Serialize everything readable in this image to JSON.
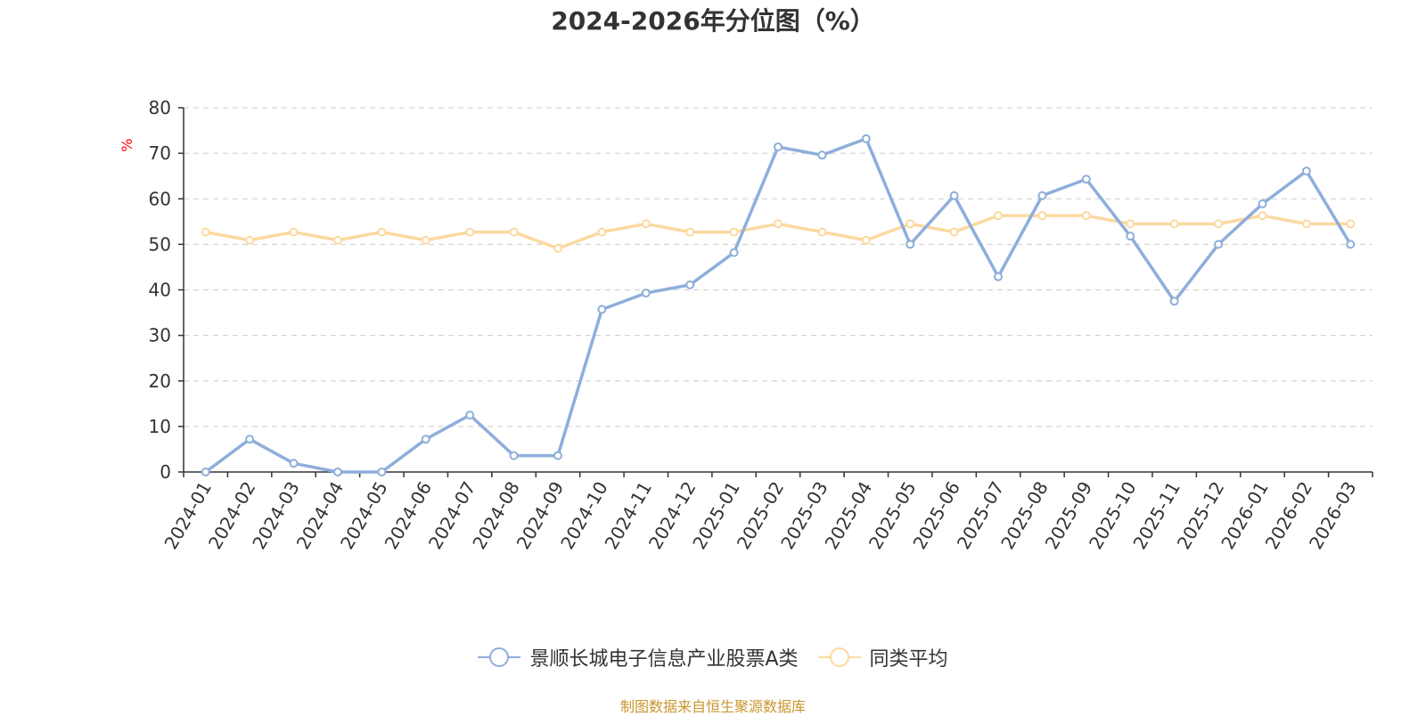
{
  "chart_data": {
    "type": "line",
    "title": "2024-2026年分位图（%）",
    "ylabel": "%",
    "ylim": [
      0,
      80
    ],
    "yticks": [
      0,
      10,
      20,
      30,
      40,
      50,
      60,
      70,
      80
    ],
    "grid": true,
    "legend_position": "bottom",
    "categories": [
      "2024-01",
      "2024-02",
      "2024-03",
      "2024-04",
      "2024-05",
      "2024-06",
      "2024-07",
      "2024-08",
      "2024-09",
      "2024-10",
      "2024-11",
      "2024-12",
      "2025-01",
      "2025-02",
      "2025-03",
      "2025-04",
      "2025-05",
      "2025-06",
      "2025-07",
      "2025-08",
      "2025-09",
      "2025-10",
      "2025-11",
      "2025-12",
      "2026-01",
      "2026-02",
      "2026-03"
    ],
    "series": [
      {
        "name": "景顺长城电子信息产业股票A类",
        "color": "#8eaedb",
        "values": [
          0,
          7.2,
          1.9,
          0,
          0,
          7.2,
          12.5,
          3.6,
          3.6,
          35.7,
          39.3,
          41.1,
          48.2,
          71.4,
          69.6,
          73.2,
          50.0,
          60.7,
          42.9,
          60.7,
          64.3,
          51.8,
          37.5,
          50.0,
          58.9,
          66.1,
          50.0
        ]
      },
      {
        "name": "同类平均",
        "color": "#fcd9a0",
        "values": [
          52.7,
          50.9,
          52.7,
          50.9,
          52.7,
          50.9,
          52.7,
          52.7,
          49.1,
          52.7,
          54.5,
          52.7,
          52.7,
          54.5,
          52.7,
          50.9,
          54.5,
          52.7,
          56.3,
          56.3,
          56.3,
          54.5,
          54.5,
          54.5,
          56.3,
          54.5,
          54.5
        ]
      }
    ]
  },
  "source_note": "制图数据来自恒生聚源数据库",
  "colors": {
    "title": "#333333",
    "axis": "#333333",
    "grid": "#cccccc",
    "unit": "#ff0000",
    "source": "#c8962e"
  }
}
